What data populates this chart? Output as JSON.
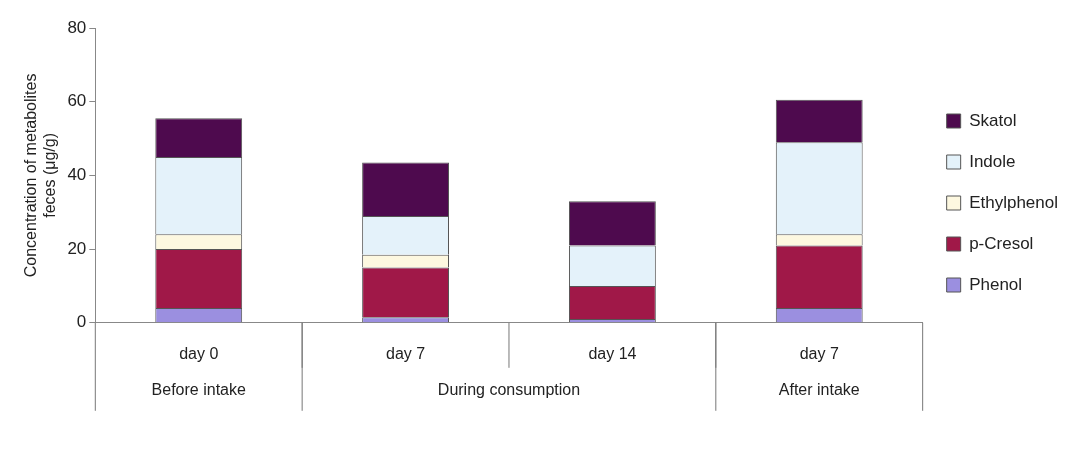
{
  "chart_data": {
    "type": "bar",
    "stacked": true,
    "ylabel": "Concentration of metabolites feces (μg/g)",
    "categories": [
      "day 0",
      "day 7",
      "day 14",
      "day 7"
    ],
    "annotations": [
      "Before intake",
      "During consumption",
      "After intake"
    ],
    "series": [
      {
        "name": "Phenol",
        "color": "#9b8fe0",
        "values": [
          4,
          1.5,
          1,
          4
        ]
      },
      {
        "name": "p-Cresol",
        "color": "#a01848",
        "values": [
          16,
          13.5,
          9,
          17
        ]
      },
      {
        "name": "Ethylphenol",
        "color": "#fdf8e0",
        "values": [
          4,
          3.5,
          0,
          3
        ]
      },
      {
        "name": "Indole",
        "color": "#e4f2fa",
        "values": [
          21,
          10.5,
          11,
          25
        ]
      },
      {
        "name": "Skatol",
        "color": "#4e0a4e",
        "values": [
          10.5,
          14.5,
          12,
          11.5
        ]
      }
    ],
    "ylim": [
      0,
      80
    ],
    "yticks": [
      0,
      20,
      40,
      60,
      80
    ],
    "grid": false,
    "legend": "right"
  }
}
